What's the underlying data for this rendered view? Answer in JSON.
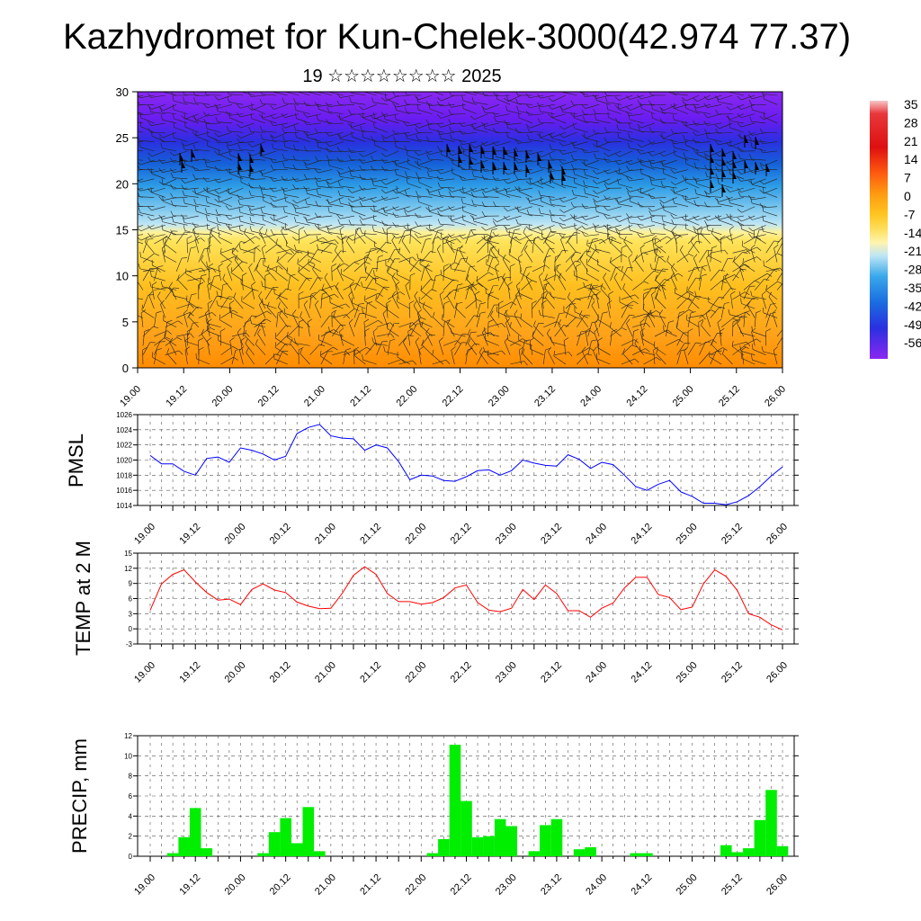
{
  "title": "Kazhydromet for Kun-Chelek-3000(42.974 77.37)",
  "subtitle": "19 ☆☆☆☆☆☆☆☆ 2025",
  "time_ticks": [
    "19.00",
    "19.12",
    "20.00",
    "20.12",
    "21.00",
    "21.12",
    "22.00",
    "22.12",
    "23.00",
    "23.12",
    "24.00",
    "24.12",
    "25.00",
    "25.12",
    "26.00"
  ],
  "colorbar": {
    "labels": [
      "35",
      "28",
      "21",
      "14",
      "7",
      "0",
      "-7",
      "-14",
      "-21",
      "-28",
      "-35",
      "-42",
      "-49",
      "-56"
    ]
  },
  "chart_data": [
    {
      "type": "heatmap",
      "name": "cross-section",
      "ylim": [
        0,
        30
      ],
      "yticks": [
        "0",
        "5",
        "10",
        "15",
        "20",
        "25",
        "30"
      ],
      "x": [
        "19.00",
        "26.00"
      ],
      "color_bands": [
        {
          "from": 0,
          "to": 8,
          "temp": "5 to 12"
        },
        {
          "from": 8,
          "to": 15,
          "temp": "-7 to 5"
        },
        {
          "from": 15,
          "to": 22,
          "temp": "-35 to -14"
        },
        {
          "from": 22,
          "to": 27,
          "temp": "-49 to -35"
        },
        {
          "from": 27,
          "to": 30,
          "temp": "-56"
        }
      ]
    },
    {
      "type": "line",
      "ylabel": "PMSL",
      "ylim": [
        1014,
        1026
      ],
      "yticks": [
        "1014",
        "1016",
        "1018",
        "1020",
        "1022",
        "1024",
        "1026"
      ],
      "series": [
        {
          "color": "#0000ff",
          "values": [
            1020.6,
            1019.5,
            1019.5,
            1018.5,
            1018.0,
            1020.2,
            1020.4,
            1019.7,
            1021.6,
            1021.3,
            1020.8,
            1020.0,
            1020.5,
            1023.5,
            1024.3,
            1024.7,
            1023.2,
            1022.9,
            1022.8,
            1021.3,
            1022.0,
            1021.6,
            1019.8,
            1017.4,
            1018.0,
            1017.9,
            1017.3,
            1017.2,
            1017.8,
            1018.6,
            1018.7,
            1018.0,
            1018.6,
            1020.0,
            1019.6,
            1019.3,
            1019.2,
            1020.7,
            1020.1,
            1018.9,
            1019.7,
            1019.4,
            1018.0,
            1016.5,
            1016.0,
            1016.8,
            1017.3,
            1015.8,
            1015.2,
            1014.3,
            1014.3,
            1014.1,
            1014.5,
            1015.3,
            1016.5,
            1017.9,
            1019.1
          ]
        }
      ]
    },
    {
      "type": "line",
      "ylabel": "TEMP at 2 M",
      "ylim": [
        -3,
        15
      ],
      "yticks": [
        "-3",
        "0",
        "3",
        "6",
        "9",
        "12",
        "15"
      ],
      "series": [
        {
          "color": "#ff0000",
          "values": [
            3.7,
            8.9,
            10.8,
            11.7,
            9.3,
            7.2,
            5.7,
            5.9,
            4.8,
            7.8,
            8.9,
            7.7,
            7.2,
            5.3,
            4.5,
            4.0,
            4.1,
            7.0,
            10.6,
            12.3,
            10.8,
            7.0,
            5.4,
            5.4,
            4.9,
            5.2,
            6.2,
            8.1,
            8.7,
            5.2,
            3.7,
            3.4,
            4.1,
            7.8,
            5.8,
            8.7,
            7.0,
            3.6,
            3.6,
            2.3,
            4.1,
            5.1,
            8.1,
            10.2,
            10.2,
            6.8,
            6.2,
            3.8,
            4.3,
            8.9,
            11.7,
            10.4,
            7.6,
            3.0,
            2.3,
            0.8,
            -0.2
          ]
        }
      ]
    },
    {
      "type": "bar",
      "ylabel": "PRECIP, mm",
      "ylim": [
        0,
        12
      ],
      "yticks": [
        "0",
        "2",
        "4",
        "6",
        "8",
        "10",
        "12"
      ],
      "color": "#00ee00",
      "values": [
        0,
        0,
        0.3,
        1.9,
        4.8,
        0.8,
        0,
        0,
        0,
        0,
        0.3,
        2.4,
        3.8,
        1.3,
        4.9,
        0.5,
        0,
        0,
        0,
        0,
        0,
        0,
        0,
        0,
        0,
        0.3,
        1.7,
        11.1,
        5.5,
        1.9,
        2.0,
        3.7,
        3.0,
        0,
        0.5,
        3.1,
        3.7,
        0,
        0.7,
        0.9,
        0,
        0,
        0,
        0.3,
        0.3,
        0,
        0,
        0,
        0,
        0,
        0,
        1.1,
        0.4,
        0.8,
        3.6,
        6.6,
        1.0
      ]
    }
  ]
}
